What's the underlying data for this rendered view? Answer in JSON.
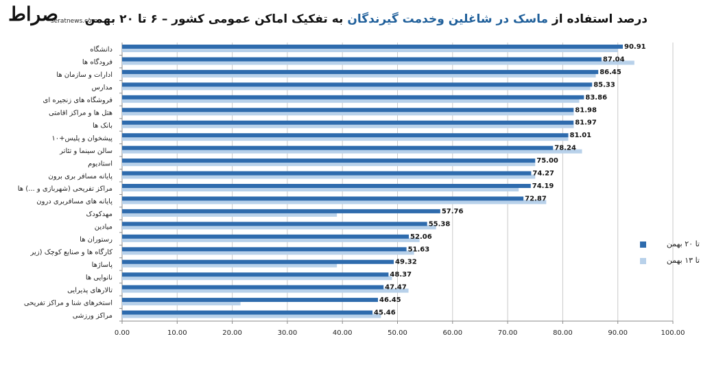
{
  "logo": {
    "mark": "صراط",
    "site": "seratnews.com"
  },
  "title": {
    "part1": "درصد استفاده از ",
    "highlight": "ماسک در شاغلین وخدمت گیرندگان",
    "part2": " به تفکیک اماکن عمومی کشور  –  ۶  تا  ۲۰ بهمن"
  },
  "colors": {
    "dark": "#2e6bad",
    "light": "#b8d1ea",
    "grid": "#c9c9c9"
  },
  "chart_data": {
    "type": "bar",
    "orientation": "horizontal",
    "xlim": [
      0,
      100
    ],
    "x_ticks": [
      "0.00",
      "10.00",
      "20.00",
      "30.00",
      "40.00",
      "50.00",
      "60.00",
      "70.00",
      "80.00",
      "90.00",
      "100.00"
    ],
    "x_tick_values": [
      0,
      10,
      20,
      30,
      40,
      50,
      60,
      70,
      80,
      90,
      100
    ],
    "grid": "vertical",
    "legend_position": "right",
    "categories": [
      "دانشگاه",
      "فرودگاه ها",
      "ادارات و سازمان ها",
      "مدارس",
      "فروشگاه های زنجیره ای",
      "هتل ها و مراکز اقامتی",
      "بانک ها",
      "پیشخوان و پلیس+۱۰",
      "سالن سینما و تئاتر",
      "استادیوم",
      "پایانه مسافر بری برون",
      "مراکز تفریحی (شهربازی و ...) ها",
      "پایانه های مسافربری درون",
      "مهدکودک",
      "میادین",
      "رستوران ها",
      "کارگاه ها و صنایع کوچک (زیر",
      "پاساژها",
      "نانوایی ها",
      "تالارهای پذیرایی",
      "استخرهای شنا و مراکز تفریحی",
      "مراکز ورزشی"
    ],
    "series": [
      {
        "name": "تا ۲۰ بهمن",
        "color": "#2e6bad",
        "values": [
          90.91,
          87.04,
          86.45,
          85.33,
          83.86,
          81.98,
          81.97,
          81.01,
          78.24,
          75.0,
          74.27,
          74.19,
          72.87,
          57.76,
          55.38,
          52.06,
          51.63,
          49.32,
          48.37,
          47.47,
          46.45,
          45.46
        ],
        "labels": [
          "90.91",
          "87.04",
          "86.45",
          "85.33",
          "83.86",
          "81.98",
          "81.97",
          "81.01",
          "78.24",
          "75.00",
          "74.27",
          "74.19",
          "72.87",
          "57.76",
          "55.38",
          "52.06",
          "51.63",
          "49.32",
          "48.37",
          "47.47",
          "46.45",
          "45.46"
        ]
      },
      {
        "name": "تا ۱۳ بهمن",
        "color": "#b8d1ea",
        "values": [
          90.0,
          93.0,
          86.0,
          85.0,
          83.0,
          82.0,
          82.0,
          81.0,
          83.5,
          75.0,
          75.0,
          72.0,
          77.0,
          39.0,
          57.0,
          54.0,
          53.0,
          39.0,
          49.0,
          52.0,
          21.5,
          47.0
        ]
      }
    ]
  }
}
